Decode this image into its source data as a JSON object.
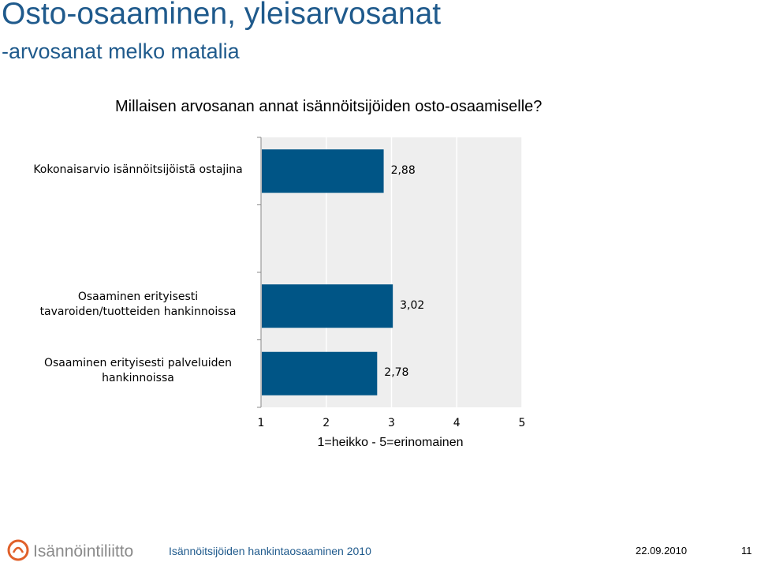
{
  "slide": {
    "title": "Osto-osaaminen, yleisarvosanat",
    "subtitle": "-arvosanat melko matalia",
    "question": "Millaisen arvosanan annat isännöitsijöiden osto-osaamiselle?"
  },
  "chart_data": {
    "type": "bar",
    "orientation": "horizontal",
    "categories": [
      "Kokonaisarvio isännöitsijöistä ostajina",
      "Osaaminen erityisesti tavaroiden/tuotteiden hankinnoissa",
      "Osaaminen erityisesti palveluiden hankinnoissa"
    ],
    "values": [
      2.88,
      3.02,
      2.78
    ],
    "value_labels": [
      "2,88",
      "3,02",
      "2,78"
    ],
    "xlim": [
      1,
      5
    ],
    "x_ticks": [
      "1",
      "2",
      "3",
      "4",
      "5"
    ],
    "xlabel": "1=heikko - 5=erinomainen",
    "grid": true,
    "colors": {
      "bar": "#005586",
      "plot_bg": "#eeeeee",
      "grid": "#ffffff",
      "title": "#1f5a8c"
    }
  },
  "footer": {
    "logo_text": "Isännöintiliitto",
    "text": "Isännöitsijöiden hankintaosaaminen 2010",
    "date": "22.09.2010",
    "page": "11"
  }
}
